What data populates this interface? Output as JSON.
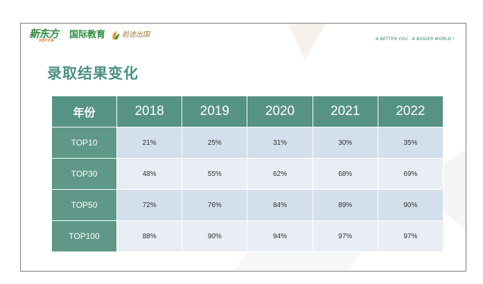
{
  "header": {
    "brand_cn": "新东方",
    "brand_en": "XDF.CN",
    "brand_division": "国际教育",
    "partner_logo_text": "前途出国",
    "tagline": "A BETTER YOU , A BIGGER WORLD !"
  },
  "slide": {
    "title": "录取结果变化"
  },
  "table": {
    "corner_header": "年份",
    "years": [
      "2018",
      "2019",
      "2020",
      "2021",
      "2022"
    ],
    "rows": [
      {
        "label": "TOP10",
        "values": [
          "21%",
          "25%",
          "31%",
          "30%",
          "35%"
        ]
      },
      {
        "label": "TOP30",
        "values": [
          "48%",
          "55%",
          "62%",
          "68%",
          "69%"
        ]
      },
      {
        "label": "TOP50",
        "values": [
          "72%",
          "76%",
          "84%",
          "89%",
          "90%"
        ]
      },
      {
        "label": "TOP100",
        "values": [
          "88%",
          "90%",
          "94%",
          "97%",
          "97%"
        ]
      }
    ]
  },
  "colors": {
    "header_teal": "#569384",
    "row_label_teal": "#5f9888",
    "stripe_dark": "#d3dfea",
    "stripe_light": "#e8eef4",
    "title_teal": "#4b9082",
    "brand_green": "#2f8c45",
    "brand_orange": "#e07a2b"
  }
}
